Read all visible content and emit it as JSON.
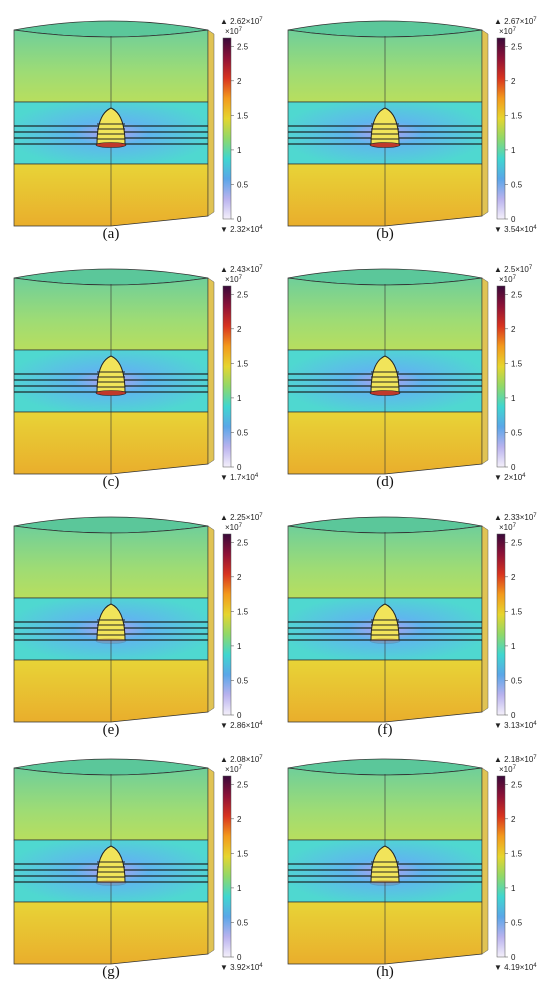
{
  "figure": {
    "panels": [
      {
        "label": "(a)",
        "max": "2.62×10",
        "max_exp": "7",
        "min": "2.32×10",
        "min_exp": "4",
        "mult": "×10",
        "mult_exp": "7",
        "ticks": [
          "2.5",
          "2",
          "1.5",
          "1",
          "0.5",
          "0"
        ]
      },
      {
        "label": "(b)",
        "max": "2.67×10",
        "max_exp": "7",
        "min": "3.54×10",
        "min_exp": "4",
        "mult": "×10",
        "mult_exp": "7",
        "ticks": [
          "2.5",
          "2",
          "1.5",
          "1",
          "0.5",
          "0"
        ]
      },
      {
        "label": "(c)",
        "max": "2.43×10",
        "max_exp": "7",
        "min": "1.7×10",
        "min_exp": "4",
        "mult": "×10",
        "mult_exp": "7",
        "ticks": [
          "2.5",
          "2",
          "1.5",
          "1",
          "0.5",
          "0"
        ]
      },
      {
        "label": "(d)",
        "max": "2.5×10",
        "max_exp": "7",
        "min": "2×10",
        "min_exp": "4",
        "mult": "×10",
        "mult_exp": "7",
        "ticks": [
          "2.5",
          "2",
          "1.5",
          "1",
          "0.5",
          "0"
        ]
      },
      {
        "label": "(e)",
        "max": "2.25×10",
        "max_exp": "7",
        "min": "2.86×10",
        "min_exp": "4",
        "mult": "×10",
        "mult_exp": "7",
        "ticks": [
          "2.5",
          "2",
          "1.5",
          "1",
          "0.5",
          "0"
        ]
      },
      {
        "label": "(f)",
        "max": "2.33×10",
        "max_exp": "7",
        "min": "3.13×10",
        "min_exp": "4",
        "mult": "×10",
        "mult_exp": "7",
        "ticks": [
          "2.5",
          "2",
          "1.5",
          "1",
          "0.5",
          "0"
        ]
      },
      {
        "label": "(g)",
        "max": "2.08×10",
        "max_exp": "7",
        "min": "3.92×10",
        "min_exp": "4",
        "mult": "×10",
        "mult_exp": "7",
        "ticks": [
          "2.5",
          "2",
          "1.5",
          "1",
          "0.5",
          "0"
        ]
      },
      {
        "label": "(h)",
        "max": "2.18×10",
        "max_exp": "7",
        "min": "4.19×10",
        "min_exp": "4",
        "mult": "×10",
        "mult_exp": "7",
        "ticks": [
          "2.5",
          "2",
          "1.5",
          "1",
          "0.5",
          "0"
        ]
      }
    ],
    "colormap": [
      "#f4f0fa",
      "#b9b2ee",
      "#5aa6e8",
      "#3fd6d0",
      "#8fd86a",
      "#e6d52e",
      "#f39a1c",
      "#d8331f",
      "#8e1237",
      "#3a0a3a"
    ],
    "colors": {
      "top_layer": "#7ad8a4",
      "mid_band": "#56d8d6",
      "bottom_layer": "#eab832",
      "side_wall": "#d9b52a",
      "rim": "#5bc79a",
      "outline": "#333333"
    }
  }
}
